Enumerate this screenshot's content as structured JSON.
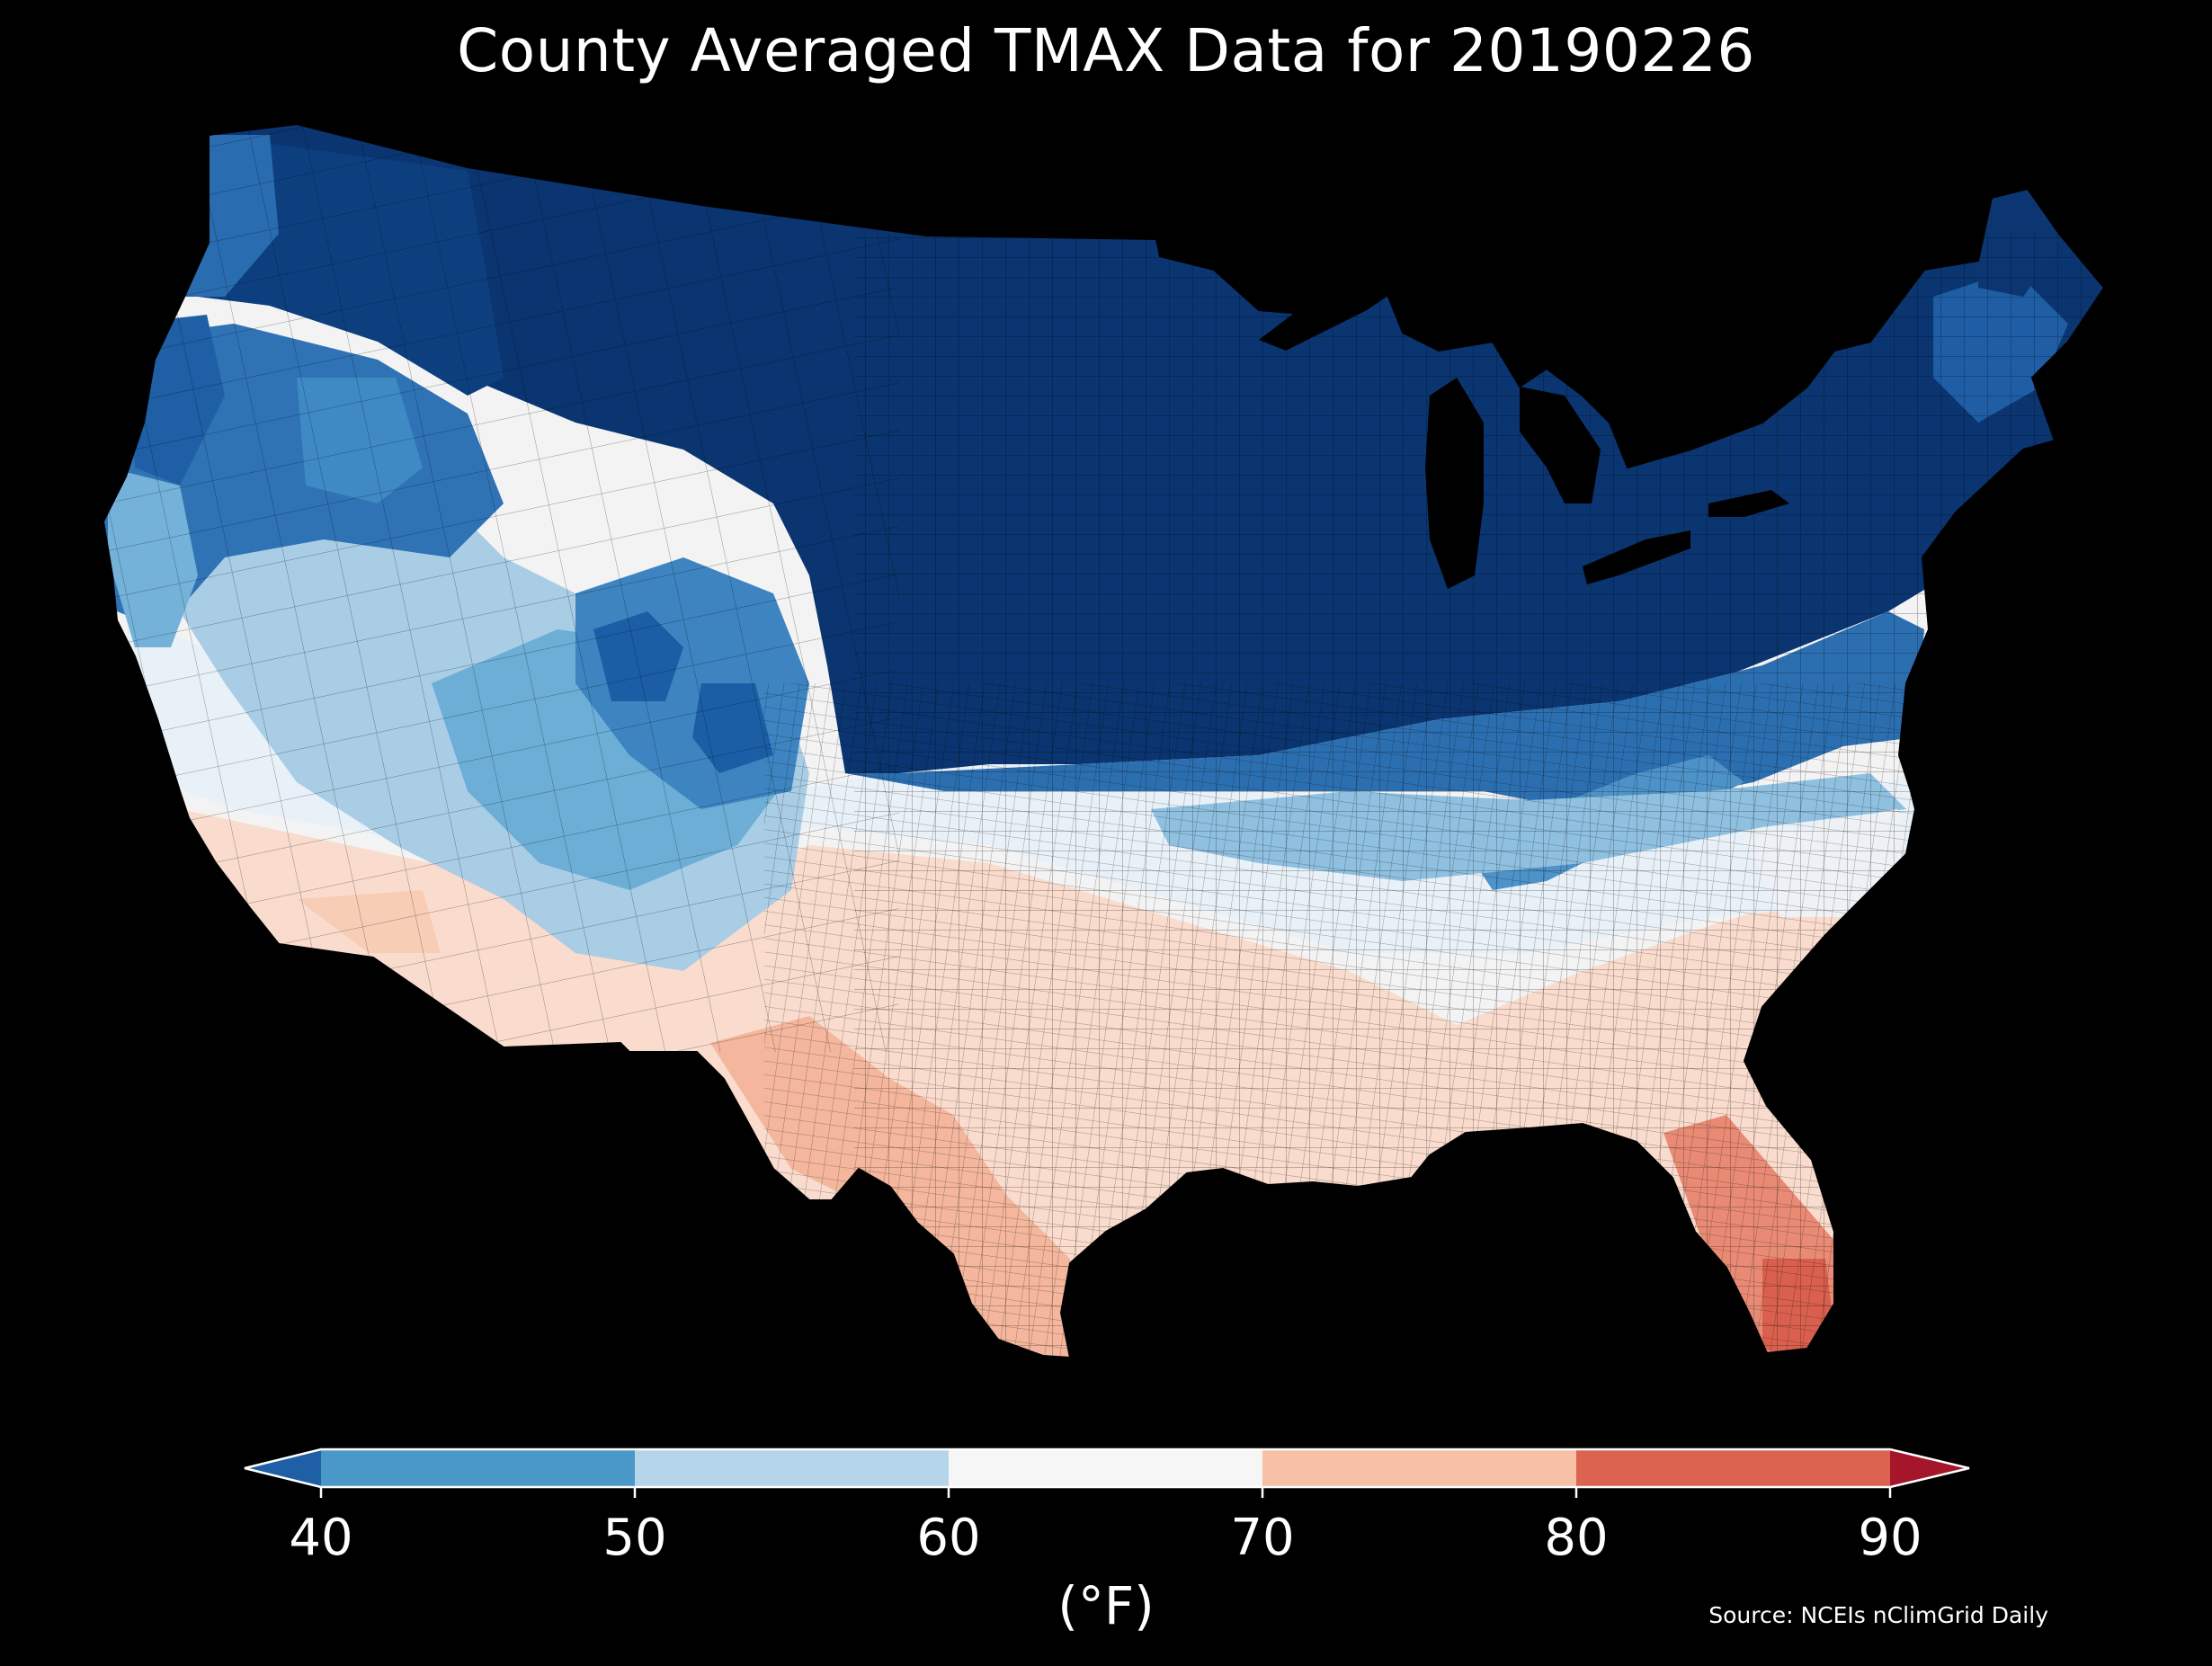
{
  "title": "County Averaged TMAX Data for 20190226",
  "colorbar": {
    "unit": "(°F)",
    "extend": "both",
    "ticks": [
      "40",
      "50",
      "60",
      "70",
      "80",
      "90"
    ],
    "bins": [
      {
        "range": "<40",
        "color": "#1f5fa5"
      },
      {
        "range": "40-50",
        "color": "#4a98c8"
      },
      {
        "range": "50-60",
        "color": "#b5d6ea"
      },
      {
        "range": "60-70",
        "color": "#f6f6f6"
      },
      {
        "range": "70-80",
        "color": "#f8c0a4"
      },
      {
        "range": "80-90",
        "color": "#db6350"
      },
      {
        "range": ">90",
        "color": "#a6162a"
      }
    ]
  },
  "map": {
    "region": "Contiguous United States",
    "units": "county",
    "variable": "TMAX",
    "scale_colors": {
      "darkest": "#08306b",
      "dark": "#0e4a8c",
      "mid_blue": "#2f79bb",
      "light_blue": "#6aaed6",
      "pale_blue": "#c6dbef",
      "near_white": "#eef3f8",
      "white": "#f7f4f2",
      "peach": "#f9d7c6",
      "salmon": "#f2a58a",
      "red": "#d6604d"
    }
  },
  "source": "Source: NCEIs nClimGrid Daily"
}
